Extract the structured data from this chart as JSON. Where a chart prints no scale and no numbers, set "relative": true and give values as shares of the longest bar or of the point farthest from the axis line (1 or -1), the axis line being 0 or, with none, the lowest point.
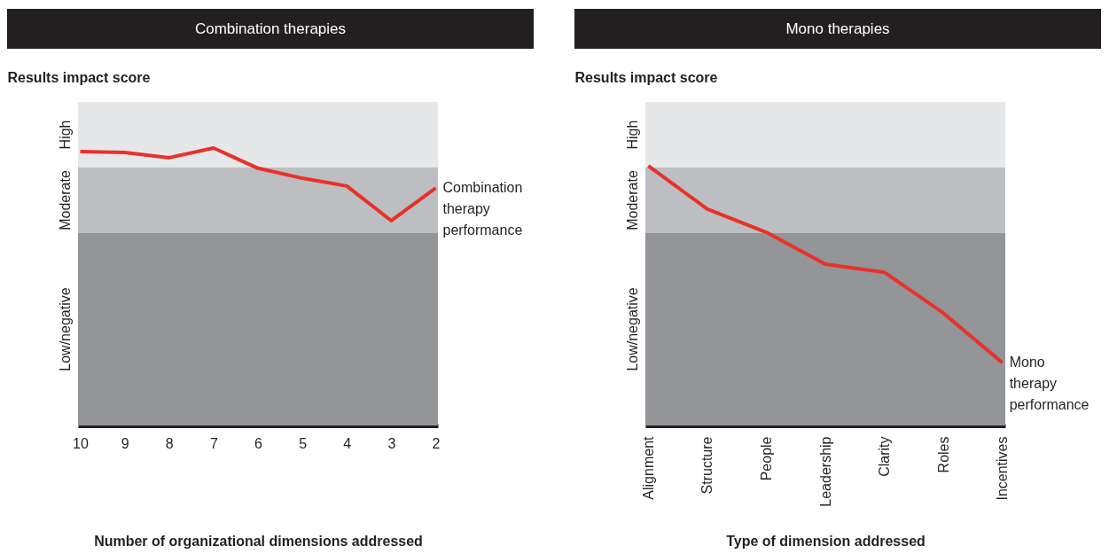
{
  "chart_data": [
    {
      "type": "line",
      "title": "Combination therapies",
      "ylabel": "Results impact score",
      "xlabel": "Number of organizational dimensions addressed",
      "relative": true,
      "categories": [
        "10",
        "9",
        "8",
        "7",
        "6",
        "5",
        "4",
        "3",
        "2"
      ],
      "series": [
        {
          "color": "#e8312a",
          "values": [
            0.987,
            0.984,
            0.965,
            1,
            0.927,
            0.891,
            0.863,
            0.738,
            0.856
          ]
        }
      ],
      "bands": [
        {
          "axis": "y",
          "from": 0,
          "to": 0.693,
          "label": "Low/negative",
          "color": "#939598"
        },
        {
          "axis": "y",
          "from": 0.693,
          "to": 0.93,
          "label": "Moderate",
          "color": "#bdbec1"
        },
        {
          "axis": "y",
          "from": 0.93,
          "to": 1.166,
          "label": "High",
          "color": "#e6e7e9"
        }
      ],
      "annotations": [
        {
          "text": "Combination therapy performance",
          "x": "2",
          "y": 0.856
        }
      ]
    },
    {
      "type": "line",
      "title": "Mono therapies",
      "ylabel": "Results impact score",
      "xlabel": "Type of dimension addressed",
      "relative": true,
      "categories": [
        "Alignment",
        "Structure",
        "People",
        "Leadership",
        "Clarity",
        "Roles",
        "Incentives"
      ],
      "series": [
        {
          "color": "#e8312a",
          "values": [
            1,
            0.833,
            0.744,
            0.621,
            0.59,
            0.433,
            0.242
          ]
        }
      ],
      "bands": [
        {
          "axis": "y",
          "from": 0,
          "to": 0.741,
          "label": "Low/negative",
          "color": "#939598"
        },
        {
          "axis": "y",
          "from": 0.741,
          "to": 0.993,
          "label": "Moderate",
          "color": "#bdbec1"
        },
        {
          "axis": "y",
          "from": 0.993,
          "to": 1.246,
          "label": "High",
          "color": "#e6e7e9"
        }
      ],
      "annotations": [
        {
          "text": "Mono therapy performance",
          "x": "Incentives",
          "y": 0.242
        }
      ]
    }
  ]
}
